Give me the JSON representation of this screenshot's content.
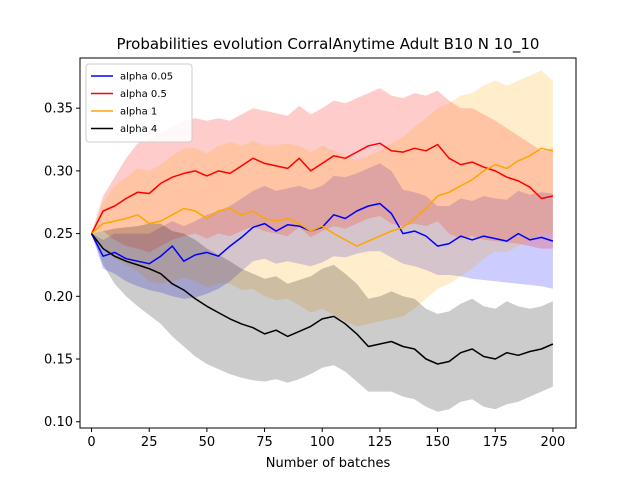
{
  "chart_data": {
    "type": "line",
    "title": "Probabilities evolution CorralAnytime Adult B10 N 10_10",
    "xlabel": "Number of batches",
    "ylabel": "",
    "xlim": [
      -5,
      210
    ],
    "ylim": [
      0.095,
      0.39
    ],
    "xticks": [
      0,
      25,
      50,
      75,
      100,
      125,
      150,
      175,
      200
    ],
    "yticks": [
      0.1,
      0.15,
      0.2,
      0.25,
      0.3,
      0.35
    ],
    "ytick_labels": [
      "0.10",
      "0.15",
      "0.20",
      "0.25",
      "0.30",
      "0.35"
    ],
    "legend_position": "top-left",
    "series": [
      {
        "name": "alpha 0.05",
        "color": "#0000ff",
        "band_color": "#0000ff",
        "x": [
          0,
          5,
          10,
          15,
          20,
          25,
          30,
          35,
          40,
          45,
          50,
          55,
          60,
          65,
          70,
          75,
          80,
          85,
          90,
          95,
          100,
          105,
          110,
          115,
          120,
          125,
          130,
          135,
          140,
          145,
          150,
          155,
          160,
          165,
          170,
          175,
          180,
          185,
          190,
          195,
          200
        ],
        "values": [
          0.25,
          0.232,
          0.235,
          0.23,
          0.228,
          0.226,
          0.232,
          0.24,
          0.228,
          0.233,
          0.235,
          0.232,
          0.24,
          0.247,
          0.255,
          0.258,
          0.252,
          0.257,
          0.256,
          0.252,
          0.255,
          0.265,
          0.262,
          0.268,
          0.272,
          0.274,
          0.266,
          0.25,
          0.252,
          0.248,
          0.24,
          0.242,
          0.248,
          0.245,
          0.248,
          0.246,
          0.244,
          0.25,
          0.245,
          0.247,
          0.244
        ],
        "lower": [
          0.25,
          0.222,
          0.218,
          0.212,
          0.208,
          0.205,
          0.203,
          0.2,
          0.198,
          0.199,
          0.202,
          0.206,
          0.212,
          0.22,
          0.228,
          0.23,
          0.226,
          0.228,
          0.226,
          0.224,
          0.227,
          0.232,
          0.231,
          0.234,
          0.236,
          0.236,
          0.231,
          0.226,
          0.224,
          0.221,
          0.217,
          0.217,
          0.216,
          0.214,
          0.213,
          0.212,
          0.211,
          0.21,
          0.209,
          0.208,
          0.206
        ],
        "upper": [
          0.25,
          0.245,
          0.25,
          0.25,
          0.25,
          0.25,
          0.255,
          0.26,
          0.256,
          0.26,
          0.265,
          0.268,
          0.272,
          0.278,
          0.284,
          0.288,
          0.284,
          0.286,
          0.288,
          0.285,
          0.288,
          0.296,
          0.295,
          0.298,
          0.302,
          0.306,
          0.3,
          0.285,
          0.283,
          0.28,
          0.272,
          0.272,
          0.278,
          0.276,
          0.28,
          0.278,
          0.277,
          0.284,
          0.281,
          0.283,
          0.282
        ]
      },
      {
        "name": "alpha 0.5",
        "color": "#ff0000",
        "band_color": "#ff0000",
        "x": [
          0,
          5,
          10,
          15,
          20,
          25,
          30,
          35,
          40,
          45,
          50,
          55,
          60,
          65,
          70,
          75,
          80,
          85,
          90,
          95,
          100,
          105,
          110,
          115,
          120,
          125,
          130,
          135,
          140,
          145,
          150,
          155,
          160,
          165,
          170,
          175,
          180,
          185,
          190,
          195,
          200
        ],
        "values": [
          0.25,
          0.268,
          0.272,
          0.278,
          0.283,
          0.282,
          0.29,
          0.295,
          0.298,
          0.3,
          0.296,
          0.3,
          0.298,
          0.304,
          0.31,
          0.306,
          0.304,
          0.302,
          0.31,
          0.3,
          0.306,
          0.312,
          0.31,
          0.315,
          0.32,
          0.322,
          0.316,
          0.315,
          0.318,
          0.316,
          0.321,
          0.31,
          0.305,
          0.307,
          0.303,
          0.3,
          0.295,
          0.292,
          0.287,
          0.278,
          0.28
        ],
        "lower": [
          0.25,
          0.252,
          0.245,
          0.24,
          0.238,
          0.235,
          0.24,
          0.245,
          0.248,
          0.25,
          0.246,
          0.25,
          0.248,
          0.252,
          0.256,
          0.252,
          0.25,
          0.248,
          0.255,
          0.247,
          0.252,
          0.256,
          0.254,
          0.258,
          0.262,
          0.264,
          0.258,
          0.256,
          0.258,
          0.256,
          0.26,
          0.25,
          0.246,
          0.248,
          0.245,
          0.244,
          0.243,
          0.242,
          0.24,
          0.238,
          0.238
        ],
        "upper": [
          0.25,
          0.28,
          0.295,
          0.31,
          0.322,
          0.325,
          0.33,
          0.335,
          0.34,
          0.342,
          0.34,
          0.342,
          0.34,
          0.345,
          0.35,
          0.348,
          0.346,
          0.344,
          0.352,
          0.345,
          0.35,
          0.356,
          0.354,
          0.358,
          0.362,
          0.366,
          0.36,
          0.358,
          0.362,
          0.36,
          0.364,
          0.356,
          0.35,
          0.35,
          0.345,
          0.34,
          0.334,
          0.328,
          0.322,
          0.316,
          0.318
        ]
      },
      {
        "name": "alpha 1",
        "color": "#ffa500",
        "band_color": "#ffa500",
        "x": [
          0,
          5,
          10,
          15,
          20,
          25,
          30,
          35,
          40,
          45,
          50,
          55,
          60,
          65,
          70,
          75,
          80,
          85,
          90,
          95,
          100,
          105,
          110,
          115,
          120,
          125,
          130,
          135,
          140,
          145,
          150,
          155,
          160,
          165,
          170,
          175,
          180,
          185,
          190,
          195,
          200
        ],
        "values": [
          0.25,
          0.258,
          0.26,
          0.262,
          0.265,
          0.258,
          0.26,
          0.265,
          0.27,
          0.268,
          0.262,
          0.268,
          0.27,
          0.265,
          0.268,
          0.262,
          0.26,
          0.262,
          0.258,
          0.252,
          0.256,
          0.25,
          0.245,
          0.24,
          0.244,
          0.248,
          0.252,
          0.255,
          0.262,
          0.27,
          0.28,
          0.283,
          0.288,
          0.293,
          0.3,
          0.305,
          0.302,
          0.308,
          0.312,
          0.318,
          0.316
        ],
        "lower": [
          0.25,
          0.24,
          0.23,
          0.225,
          0.22,
          0.212,
          0.21,
          0.212,
          0.215,
          0.212,
          0.207,
          0.21,
          0.21,
          0.205,
          0.206,
          0.2,
          0.197,
          0.198,
          0.193,
          0.187,
          0.19,
          0.185,
          0.18,
          0.176,
          0.178,
          0.18,
          0.182,
          0.184,
          0.19,
          0.198,
          0.206,
          0.21,
          0.216,
          0.222,
          0.23,
          0.236,
          0.235,
          0.24,
          0.245,
          0.25,
          0.25
        ],
        "upper": [
          0.25,
          0.275,
          0.288,
          0.295,
          0.302,
          0.3,
          0.305,
          0.312,
          0.318,
          0.318,
          0.314,
          0.32,
          0.323,
          0.32,
          0.324,
          0.32,
          0.32,
          0.322,
          0.32,
          0.315,
          0.32,
          0.316,
          0.312,
          0.308,
          0.312,
          0.316,
          0.322,
          0.327,
          0.335,
          0.342,
          0.35,
          0.354,
          0.36,
          0.362,
          0.368,
          0.372,
          0.368,
          0.372,
          0.376,
          0.38,
          0.372
        ]
      },
      {
        "name": "alpha 4",
        "color": "#000000",
        "band_color": "#000000",
        "x": [
          0,
          5,
          10,
          15,
          20,
          25,
          30,
          35,
          40,
          45,
          50,
          55,
          60,
          65,
          70,
          75,
          80,
          85,
          90,
          95,
          100,
          105,
          110,
          115,
          120,
          125,
          130,
          135,
          140,
          145,
          150,
          155,
          160,
          165,
          170,
          175,
          180,
          185,
          190,
          195,
          200
        ],
        "values": [
          0.25,
          0.238,
          0.232,
          0.228,
          0.225,
          0.222,
          0.218,
          0.21,
          0.205,
          0.198,
          0.192,
          0.187,
          0.182,
          0.178,
          0.175,
          0.17,
          0.173,
          0.168,
          0.172,
          0.176,
          0.182,
          0.184,
          0.178,
          0.17,
          0.16,
          0.162,
          0.164,
          0.16,
          0.158,
          0.15,
          0.146,
          0.148,
          0.155,
          0.158,
          0.152,
          0.15,
          0.155,
          0.153,
          0.156,
          0.158,
          0.162
        ],
        "lower": [
          0.25,
          0.225,
          0.21,
          0.2,
          0.192,
          0.185,
          0.178,
          0.168,
          0.16,
          0.152,
          0.146,
          0.142,
          0.138,
          0.135,
          0.133,
          0.132,
          0.134,
          0.131,
          0.134,
          0.138,
          0.143,
          0.145,
          0.14,
          0.132,
          0.124,
          0.124,
          0.124,
          0.12,
          0.118,
          0.112,
          0.108,
          0.11,
          0.116,
          0.118,
          0.112,
          0.11,
          0.114,
          0.116,
          0.12,
          0.124,
          0.128
        ],
        "upper": [
          0.25,
          0.252,
          0.254,
          0.255,
          0.256,
          0.258,
          0.258,
          0.252,
          0.25,
          0.245,
          0.238,
          0.233,
          0.228,
          0.222,
          0.218,
          0.214,
          0.216,
          0.21,
          0.213,
          0.216,
          0.222,
          0.225,
          0.218,
          0.21,
          0.198,
          0.2,
          0.204,
          0.2,
          0.198,
          0.19,
          0.186,
          0.188,
          0.194,
          0.198,
          0.192,
          0.19,
          0.196,
          0.192,
          0.19,
          0.192,
          0.196
        ]
      }
    ]
  }
}
